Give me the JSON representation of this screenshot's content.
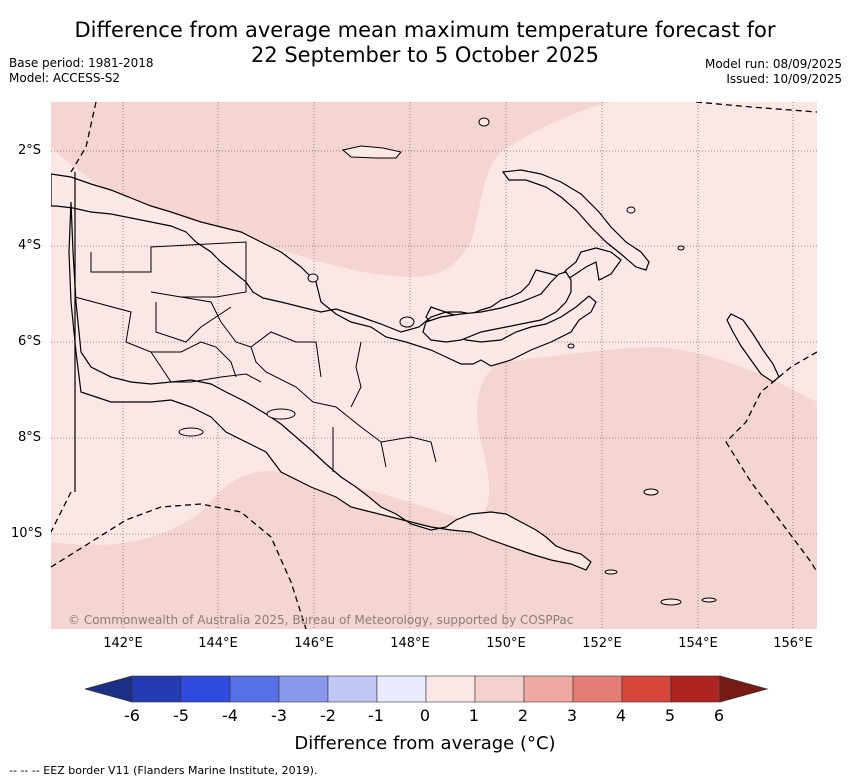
{
  "title": {
    "line1": "Difference from average mean maximum temperature forecast for",
    "line2": "22 September to 5 October 2025"
  },
  "meta": {
    "base_period": "Base period: 1981-2018",
    "model": "Model: ACCESS-S2",
    "model_run": "Model run: 08/09/2025",
    "issued": "Issued: 10/09/2025"
  },
  "map": {
    "region": "Papua New Guinea",
    "lat_labels": [
      "2°S",
      "4°S",
      "6°S",
      "8°S",
      "10°S"
    ],
    "lon_labels": [
      "142°E",
      "144°E",
      "146°E",
      "148°E",
      "150°E",
      "152°E",
      "154°E",
      "156°E"
    ],
    "copyright": "© Commonwealth of Australia 2025, Bureau of Meteorology, supported by COSPPac",
    "dominant_categories": [
      "0 to 1",
      "1 to 2"
    ]
  },
  "colorbar": {
    "title": "Difference from average (°C)",
    "ticks": [
      "-6",
      "-5",
      "-4",
      "-3",
      "-2",
      "-1",
      "0",
      "1",
      "2",
      "3",
      "4",
      "5",
      "6"
    ],
    "colors": {
      "below": "#1b2f87",
      "bins": [
        "#233cb2",
        "#2e4de0",
        "#5670e6",
        "#8898ec",
        "#c1c8f6",
        "#e8ebfb",
        "#fbe8e6",
        "#f5d1cd",
        "#eea9a2",
        "#e47d73",
        "#d8463b",
        "#ad2420"
      ],
      "above": "#771a16"
    }
  },
  "footer": {
    "eez_note": "--  --  -- EEZ border V11 (Flanders Marine Institute, 2019)."
  }
}
